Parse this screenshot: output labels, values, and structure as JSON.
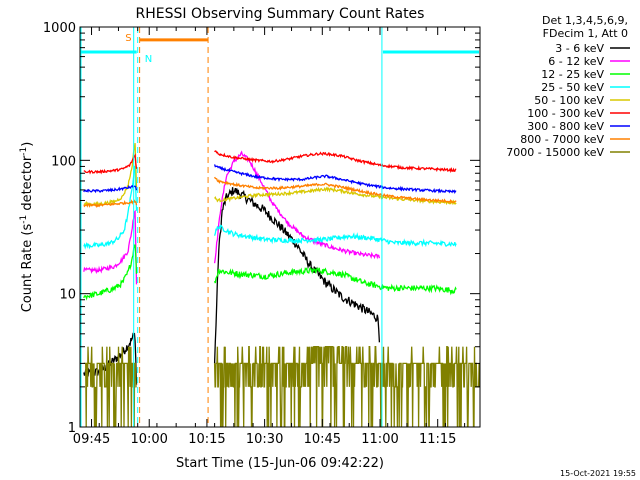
{
  "chart_data": {
    "type": "line",
    "title": "RHESSI Observing Summary Count Rates",
    "xlabel": "Start Time (15-Jun-06 09:42:22)",
    "ylabel_parts": [
      "Count Rate (s",
      "-1",
      " detector",
      "-1",
      ")"
    ],
    "x_ticks": [
      "09:45",
      "10:00",
      "10:15",
      "10:30",
      "10:45",
      "11:00",
      "11:15"
    ],
    "x_tick_minutes": [
      3,
      18,
      33,
      48,
      63,
      78,
      93
    ],
    "x_range_minutes": [
      0,
      104
    ],
    "y_ticks": [
      "1",
      "10",
      "100",
      "1000"
    ],
    "y_tick_values": [
      1,
      10,
      100,
      1000
    ],
    "y_range": [
      1,
      1000
    ],
    "y_scale": "log",
    "footer_date": "15-Oct-2021 19:55",
    "legend": {
      "header": [
        "Det 1,3,4,5,6,9,",
        "FDecim 1, Att 0"
      ],
      "entries": [
        {
          "label": "3 - 6 keV",
          "color": "#000000"
        },
        {
          "label": "6 - 12 keV",
          "color": "#ff00ff"
        },
        {
          "label": "12 - 25 keV",
          "color": "#00ff00"
        },
        {
          "label": "25 - 50 keV",
          "color": "#00ffff"
        },
        {
          "label": "50 - 100 keV",
          "color": "#d8c800"
        },
        {
          "label": "100 - 300 keV",
          "color": "#ff0000"
        },
        {
          "label": "300 - 800 keV",
          "color": "#0000ff"
        },
        {
          "label": "800 - 7000 keV",
          "color": "#ff8000"
        },
        {
          "label": "7000 - 15000 keV",
          "color": "#808000"
        }
      ]
    },
    "markers": {
      "saa_label": "S",
      "saa_color": "#ff8000",
      "saa_minutes": [
        15.5,
        33.3
      ],
      "saa_level": 800,
      "night_label": "N",
      "night_color": "#00ffff",
      "night_minutes": [
        [
          0,
          15.0
        ],
        [
          78.5,
          104
        ]
      ],
      "night_level": 650
    },
    "series": [
      {
        "name": "3 - 6 keV",
        "color": "#000000",
        "noise": 0.08,
        "segments": [
          [
            [
              1,
              2.5
            ],
            [
              5,
              2.6
            ],
            [
              8,
              3.0
            ],
            [
              11,
              3.6
            ],
            [
              13,
              4.3
            ],
            [
              14.3,
              5.0
            ],
            [
              14.7,
              2.0
            ]
          ],
          [
            [
              35,
              3.0
            ],
            [
              36,
              20
            ],
            [
              37,
              42
            ],
            [
              38,
              52
            ],
            [
              40,
              60
            ],
            [
              42,
              55
            ],
            [
              45,
              48
            ],
            [
              48,
              42
            ],
            [
              52,
              32
            ],
            [
              56,
              24
            ],
            [
              60,
              16
            ],
            [
              64,
              12
            ],
            [
              68,
              9.5
            ],
            [
              72,
              8.2
            ],
            [
              76,
              7.0
            ],
            [
              77.5,
              6.5
            ],
            [
              78,
              4.0
            ]
          ]
        ]
      },
      {
        "name": "6 - 12 keV",
        "color": "#ff00ff",
        "noise": 0.035,
        "segments": [
          [
            [
              1,
              15
            ],
            [
              5,
              15
            ],
            [
              9,
              16
            ],
            [
              11,
              18
            ],
            [
              12.5,
              21
            ],
            [
              13.5,
              30
            ],
            [
              14.3,
              45
            ],
            [
              14.7,
              11
            ]
          ],
          [
            [
              35,
              17
            ],
            [
              36.5,
              42
            ],
            [
              38,
              75
            ],
            [
              40,
              98
            ],
            [
              42,
              112
            ],
            [
              44,
              100
            ],
            [
              47,
              70
            ],
            [
              50,
              48
            ],
            [
              54,
              34
            ],
            [
              58,
              27
            ],
            [
              62,
              24
            ],
            [
              66,
              22
            ],
            [
              70,
              20.5
            ],
            [
              74,
              19.5
            ],
            [
              78,
              19
            ]
          ]
        ]
      },
      {
        "name": "12 - 25 keV",
        "color": "#00ff00",
        "noise": 0.05,
        "segments": [
          [
            [
              1,
              9.5
            ],
            [
              5,
              10
            ],
            [
              9,
              11
            ],
            [
              11,
              12
            ],
            [
              12.5,
              14.5
            ],
            [
              13.5,
              18
            ],
            [
              14.3,
              25
            ],
            [
              14.7,
              14
            ]
          ],
          [
            [
              35,
              12
            ],
            [
              36,
              15
            ],
            [
              38,
              14.5
            ],
            [
              42,
              14
            ],
            [
              48,
              13.5
            ],
            [
              55,
              14.5
            ],
            [
              62,
              15
            ],
            [
              68,
              14
            ],
            [
              74,
              12
            ],
            [
              80,
              11
            ],
            [
              86,
              11
            ],
            [
              92,
              11
            ],
            [
              98,
              10.5
            ]
          ]
        ]
      },
      {
        "name": "25 - 50 keV",
        "color": "#00ffff",
        "noise": 0.04,
        "segments": [
          [
            [
              1,
              23
            ],
            [
              5,
              23
            ],
            [
              8,
              24
            ],
            [
              10,
              26
            ],
            [
              11.5,
              30
            ],
            [
              12.5,
              40
            ],
            [
              13.5,
              60
            ],
            [
              14.3,
              95
            ],
            [
              14.7,
              40
            ]
          ],
          [
            [
              35,
              28
            ],
            [
              36,
              32
            ],
            [
              40,
              28
            ],
            [
              48,
              25.5
            ],
            [
              56,
              25
            ],
            [
              64,
              25.5
            ],
            [
              70,
              27
            ],
            [
              76,
              26
            ],
            [
              82,
              24
            ],
            [
              90,
              24
            ],
            [
              98,
              23.5
            ]
          ]
        ]
      },
      {
        "name": "50 - 100 keV",
        "color": "#d8c800",
        "noise": 0.025,
        "segments": [
          [
            [
              1,
              47
            ],
            [
              5,
              47
            ],
            [
              9,
              49
            ],
            [
              11,
              53
            ],
            [
              12.5,
              65
            ],
            [
              13.5,
              88
            ],
            [
              14.3,
              140
            ],
            [
              14.7,
              60
            ]
          ],
          [
            [
              35,
              52
            ],
            [
              36,
              50
            ],
            [
              40,
              52
            ],
            [
              46,
              55
            ],
            [
              52,
              56
            ],
            [
              58,
              58
            ],
            [
              64,
              61
            ],
            [
              68,
              59
            ],
            [
              72,
              56
            ],
            [
              78,
              53
            ],
            [
              84,
              51
            ],
            [
              92,
              49
            ],
            [
              98,
              48
            ]
          ]
        ]
      },
      {
        "name": "100 - 300 keV",
        "color": "#ff0000",
        "noise": 0.02,
        "segments": [
          [
            [
              1,
              82
            ],
            [
              5,
              82
            ],
            [
              9,
              84
            ],
            [
              11,
              86
            ],
            [
              13,
              92
            ],
            [
              14.3,
              110
            ],
            [
              14.7,
              85
            ]
          ],
          [
            [
              35,
              118
            ],
            [
              36,
              112
            ],
            [
              40,
              105
            ],
            [
              46,
              100
            ],
            [
              50,
              98
            ],
            [
              54,
              102
            ],
            [
              58,
              108
            ],
            [
              62,
              112
            ],
            [
              64,
              112
            ],
            [
              68,
              108
            ],
            [
              72,
              100
            ],
            [
              78,
              92
            ],
            [
              84,
              88
            ],
            [
              92,
              86
            ],
            [
              98,
              84
            ]
          ]
        ]
      },
      {
        "name": "300 - 800 keV",
        "color": "#0000ff",
        "noise": 0.02,
        "segments": [
          [
            [
              1,
              59
            ],
            [
              5,
              59
            ],
            [
              9,
              60
            ],
            [
              12,
              62
            ],
            [
              14.3,
              64
            ],
            [
              14.7,
              60
            ]
          ],
          [
            [
              35,
              92
            ],
            [
              36,
              88
            ],
            [
              40,
              82
            ],
            [
              46,
              75
            ],
            [
              52,
              72
            ],
            [
              58,
              72
            ],
            [
              62,
              75
            ],
            [
              64,
              76
            ],
            [
              68,
              72
            ],
            [
              74,
              66
            ],
            [
              80,
              62
            ],
            [
              88,
              60
            ],
            [
              98,
              58
            ]
          ]
        ]
      },
      {
        "name": "800 - 7000 keV",
        "color": "#ff8000",
        "noise": 0.02,
        "segments": [
          [
            [
              1,
              46
            ],
            [
              5,
              46
            ],
            [
              9,
              47
            ],
            [
              12,
              48
            ],
            [
              14.3,
              49
            ],
            [
              14.7,
              47
            ]
          ],
          [
            [
              35,
              75
            ],
            [
              36,
              70
            ],
            [
              40,
              66
            ],
            [
              46,
              62
            ],
            [
              52,
              62
            ],
            [
              58,
              64
            ],
            [
              62,
              66
            ],
            [
              64,
              66
            ],
            [
              68,
              63
            ],
            [
              74,
              58
            ],
            [
              80,
              54
            ],
            [
              88,
              51
            ],
            [
              98,
              49
            ]
          ]
        ]
      },
      {
        "name": "7000 - 15000 keV",
        "color": "#808000",
        "noise": 0.0,
        "segments": [
          [
            [
              1,
              3.0
            ],
            [
              14.7,
              3.0
            ]
          ],
          [
            [
              35,
              3.0
            ],
            [
              104,
              3.0
            ]
          ]
        ]
      }
    ]
  }
}
